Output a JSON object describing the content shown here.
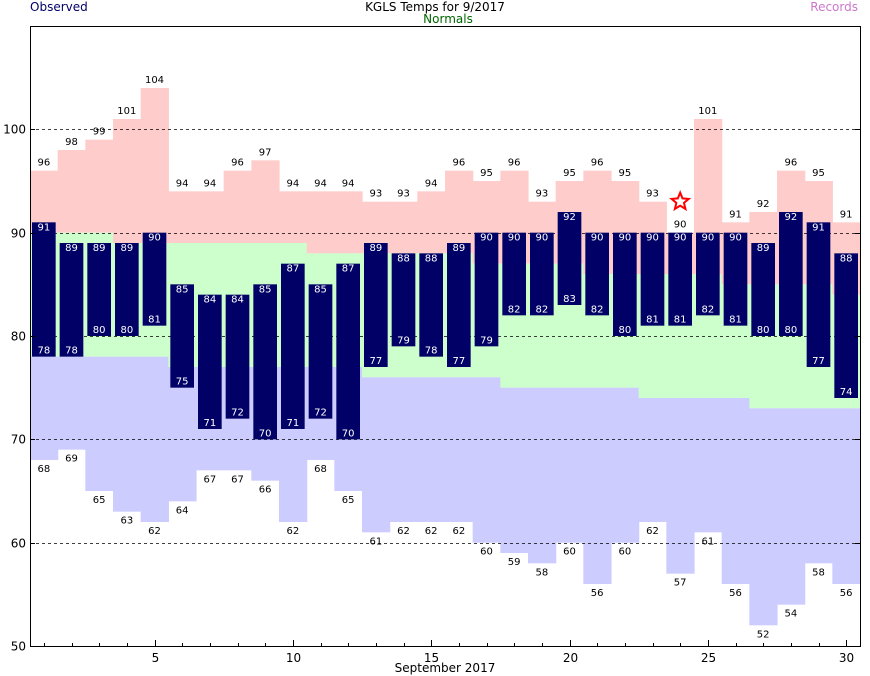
{
  "chart_data": {
    "type": "bar",
    "title": "KGLS Temps for 9/2017",
    "legend": {
      "observed": "Observed",
      "normals": "Normals",
      "records": "Records"
    },
    "xlabel": "September 2017",
    "ylabel": "",
    "ylim": [
      50,
      110
    ],
    "yticks": [
      50,
      60,
      70,
      80,
      90,
      100
    ],
    "xticks": [
      5,
      10,
      15,
      20,
      25,
      30
    ],
    "grid_lines": [
      60,
      70,
      80,
      90,
      100
    ],
    "days": [
      1,
      2,
      3,
      4,
      5,
      6,
      7,
      8,
      9,
      10,
      11,
      12,
      13,
      14,
      15,
      16,
      17,
      18,
      19,
      20,
      21,
      22,
      23,
      24,
      25,
      26,
      27,
      28,
      29,
      30
    ],
    "observed_high": [
      91,
      89,
      89,
      89,
      90,
      85,
      84,
      84,
      85,
      87,
      85,
      87,
      89,
      88,
      88,
      89,
      90,
      90,
      90,
      92,
      90,
      90,
      90,
      90,
      90,
      90,
      89,
      92,
      91,
      88
    ],
    "observed_low": [
      78,
      78,
      80,
      80,
      81,
      75,
      71,
      72,
      70,
      71,
      72,
      70,
      77,
      79,
      78,
      77,
      79,
      82,
      82,
      83,
      82,
      80,
      81,
      81,
      82,
      81,
      80,
      80,
      77,
      74
    ],
    "normal_high": [
      90,
      90,
      90,
      89,
      89,
      89,
      89,
      89,
      89,
      89,
      88,
      88,
      88,
      88,
      88,
      88,
      87,
      87,
      87,
      87,
      86,
      86,
      86,
      86,
      86,
      85,
      85,
      85,
      85,
      84
    ],
    "normal_low": [
      78,
      78,
      78,
      78,
      78,
      77,
      77,
      77,
      77,
      77,
      77,
      77,
      76,
      76,
      76,
      76,
      76,
      75,
      75,
      75,
      75,
      75,
      74,
      74,
      74,
      74,
      73,
      73,
      73,
      73
    ],
    "record_high": [
      96,
      98,
      99,
      101,
      104,
      94,
      94,
      96,
      97,
      94,
      94,
      94,
      93,
      93,
      94,
      96,
      95,
      96,
      93,
      95,
      96,
      95,
      93,
      90,
      101,
      91,
      92,
      96,
      95,
      91
    ],
    "record_low": [
      68,
      69,
      65,
      63,
      62,
      64,
      67,
      67,
      66,
      62,
      68,
      65,
      61,
      62,
      62,
      62,
      60,
      59,
      58,
      60,
      56,
      60,
      62,
      57,
      61,
      56,
      52,
      54,
      58,
      56
    ],
    "record_marker": {
      "day": 24,
      "value": 93
    },
    "colors": {
      "record_high": "#ffcccc",
      "normal": "#ccffcc",
      "record_low": "#ccccff",
      "observed": "#000066",
      "observed_label": "#ffffff",
      "title": "#000000",
      "legend_observed": "#000066",
      "legend_normals": "#006600",
      "legend_records": "#cc77cc",
      "marker": "#ff0000"
    }
  }
}
